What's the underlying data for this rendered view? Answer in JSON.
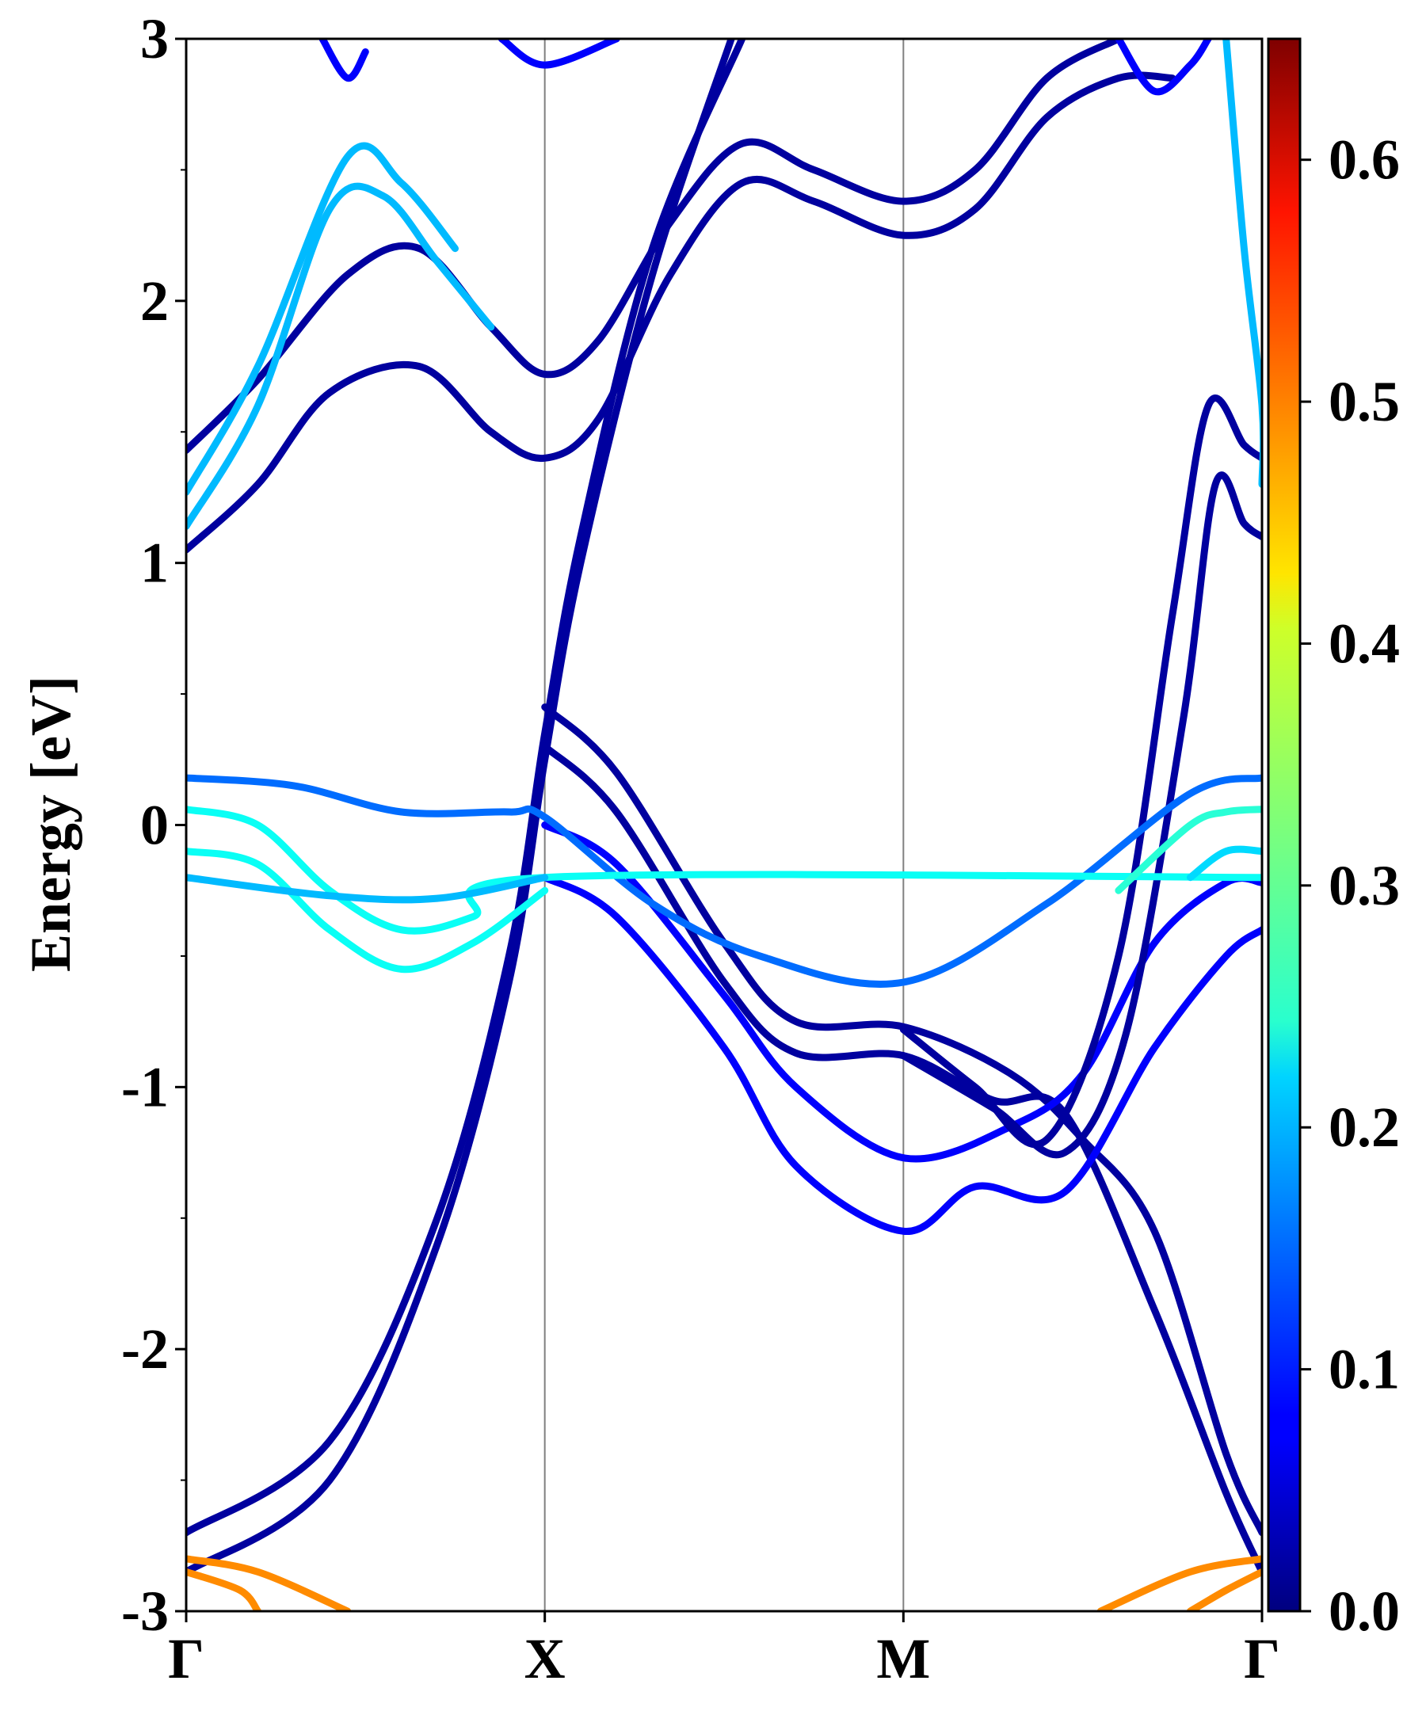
{
  "chart_data": {
    "type": "line",
    "title": "",
    "xlabel": "",
    "ylabel": "Energy [eV]",
    "ylim": [
      -3,
      3
    ],
    "xlim": [
      0,
      3
    ],
    "grid": false,
    "x_ticks": [
      {
        "x": 0,
        "label": "Γ"
      },
      {
        "x": 1,
        "label": "X"
      },
      {
        "x": 2,
        "label": "M"
      },
      {
        "x": 3,
        "label": "Γ"
      }
    ],
    "y_ticks": [
      {
        "y": 3,
        "label": "3"
      },
      {
        "y": 2,
        "label": "2"
      },
      {
        "y": 1,
        "label": "1"
      },
      {
        "y": 0,
        "label": "0"
      },
      {
        "y": -1,
        "label": "-1"
      },
      {
        "y": -2,
        "label": "-2"
      },
      {
        "y": -3,
        "label": "-3"
      }
    ],
    "colorbar": {
      "colormap": "jet",
      "range": [
        0.0,
        0.65
      ],
      "ticks": [
        {
          "value": 0.0,
          "label": "0.0"
        },
        {
          "value": 0.1,
          "label": "0.1"
        },
        {
          "value": 0.2,
          "label": "0.2"
        },
        {
          "value": 0.3,
          "label": "0.3"
        },
        {
          "value": 0.4,
          "label": "0.4"
        },
        {
          "value": 0.5,
          "label": "0.5"
        },
        {
          "value": 0.6,
          "label": "0.6"
        }
      ]
    },
    "series": [
      {
        "weight": 0.02,
        "points": [
          [
            0,
            -2.7
          ],
          [
            0.4,
            -2.35
          ],
          [
            0.7,
            -1.5
          ],
          [
            0.9,
            -0.5
          ],
          [
            1.0,
            0.35
          ],
          [
            1.1,
            1.1
          ],
          [
            1.3,
            2.2
          ],
          [
            1.55,
            3.0
          ]
        ]
      },
      {
        "weight": 0.02,
        "points": [
          [
            0,
            -2.85
          ],
          [
            0.4,
            -2.5
          ],
          [
            0.7,
            -1.6
          ],
          [
            0.9,
            -0.6
          ],
          [
            1.0,
            0.25
          ],
          [
            1.1,
            1.0
          ],
          [
            1.3,
            2.1
          ],
          [
            1.52,
            3.0
          ]
        ]
      },
      {
        "weight": 0.02,
        "points": [
          [
            1.0,
            0.45
          ],
          [
            1.2,
            0.2
          ],
          [
            1.5,
            -0.45
          ],
          [
            1.7,
            -0.75
          ],
          [
            2.0,
            -0.77
          ],
          [
            2.3,
            -0.95
          ],
          [
            2.5,
            -1.2
          ],
          [
            2.7,
            -1.55
          ],
          [
            2.9,
            -2.4
          ],
          [
            3.0,
            -2.7
          ]
        ]
      },
      {
        "weight": 0.02,
        "points": [
          [
            1.0,
            0.3
          ],
          [
            1.2,
            0.05
          ],
          [
            1.5,
            -0.6
          ],
          [
            1.7,
            -0.87
          ],
          [
            2.0,
            -0.88
          ],
          [
            2.25,
            -1.05
          ],
          [
            2.45,
            -1.1
          ],
          [
            2.7,
            -1.85
          ],
          [
            2.9,
            -2.55
          ],
          [
            3.0,
            -2.85
          ]
        ]
      },
      {
        "weight": 0.08,
        "points": [
          [
            1.0,
            0.0
          ],
          [
            1.2,
            -0.15
          ],
          [
            1.5,
            -0.65
          ],
          [
            1.7,
            -1.0
          ],
          [
            2.0,
            -1.27
          ],
          [
            2.3,
            -1.15
          ],
          [
            2.5,
            -0.95
          ],
          [
            2.7,
            -0.45
          ],
          [
            2.9,
            -0.22
          ],
          [
            3.0,
            -0.22
          ]
        ]
      },
      {
        "weight": 0.08,
        "points": [
          [
            1.0,
            -0.2
          ],
          [
            1.2,
            -0.35
          ],
          [
            1.5,
            -0.85
          ],
          [
            1.7,
            -1.3
          ],
          [
            2.0,
            -1.55
          ],
          [
            2.2,
            -1.38
          ],
          [
            2.45,
            -1.4
          ],
          [
            2.7,
            -0.85
          ],
          [
            2.9,
            -0.5
          ],
          [
            3.0,
            -0.4
          ]
        ]
      },
      {
        "weight": 0.02,
        "points": [
          [
            2.0,
            -0.78
          ],
          [
            2.2,
            -1.0
          ],
          [
            2.4,
            -1.2
          ],
          [
            2.6,
            -0.5
          ],
          [
            2.75,
            0.8
          ],
          [
            2.85,
            1.6
          ],
          [
            2.95,
            1.45
          ],
          [
            3.0,
            1.4
          ]
        ]
      },
      {
        "weight": 0.02,
        "points": [
          [
            2.0,
            -0.88
          ],
          [
            2.25,
            -1.08
          ],
          [
            2.45,
            -1.25
          ],
          [
            2.62,
            -0.8
          ],
          [
            2.78,
            0.4
          ],
          [
            2.87,
            1.3
          ],
          [
            2.95,
            1.15
          ],
          [
            3.0,
            1.1
          ]
        ]
      },
      {
        "weight": 0.15,
        "points": [
          [
            0,
            0.18
          ],
          [
            0.3,
            0.15
          ],
          [
            0.6,
            0.05
          ],
          [
            0.9,
            0.05
          ],
          [
            1.0,
            0.03
          ],
          [
            1.3,
            -0.3
          ],
          [
            1.6,
            -0.5
          ],
          [
            2.0,
            -0.6
          ],
          [
            2.4,
            -0.3
          ],
          [
            2.8,
            0.12
          ],
          [
            3.0,
            0.18
          ]
        ]
      },
      {
        "weight": 0.25,
        "points": [
          [
            0,
            0.06
          ],
          [
            0.2,
            0.0
          ],
          [
            0.4,
            -0.25
          ],
          [
            0.6,
            -0.4
          ],
          [
            0.8,
            -0.35
          ],
          [
            1.0,
            -0.2
          ],
          [
            3.0,
            -0.2
          ]
        ]
      },
      {
        "weight": 0.25,
        "points": [
          [
            0,
            -0.1
          ],
          [
            0.2,
            -0.15
          ],
          [
            0.4,
            -0.4
          ],
          [
            0.6,
            -0.55
          ],
          [
            0.8,
            -0.45
          ],
          [
            1.0,
            -0.25
          ]
        ]
      },
      {
        "weight": 0.2,
        "points": [
          [
            0,
            -0.2
          ],
          [
            0.4,
            -0.27
          ],
          [
            0.7,
            -0.28
          ],
          [
            1.0,
            -0.2
          ]
        ]
      },
      {
        "weight": 0.22,
        "points": [
          [
            2.8,
            -0.2
          ],
          [
            2.9,
            -0.1
          ],
          [
            3.0,
            -0.1
          ]
        ]
      },
      {
        "weight": 0.27,
        "points": [
          [
            2.6,
            -0.25
          ],
          [
            2.8,
            0.0
          ],
          [
            2.9,
            0.05
          ],
          [
            3.0,
            0.06
          ]
        ]
      },
      {
        "weight": 0.02,
        "points": [
          [
            0,
            1.05
          ],
          [
            0.2,
            1.3
          ],
          [
            0.4,
            1.65
          ],
          [
            0.65,
            1.75
          ],
          [
            0.85,
            1.5
          ],
          [
            1.0,
            1.4
          ],
          [
            1.15,
            1.55
          ],
          [
            1.35,
            2.1
          ],
          [
            1.55,
            2.45
          ],
          [
            1.75,
            2.38
          ],
          [
            2.0,
            2.25
          ],
          [
            2.2,
            2.35
          ],
          [
            2.4,
            2.7
          ],
          [
            2.6,
            2.85
          ],
          [
            2.75,
            2.85
          ]
        ]
      },
      {
        "weight": 0.02,
        "points": [
          [
            0,
            1.43
          ],
          [
            0.2,
            1.7
          ],
          [
            0.45,
            2.1
          ],
          [
            0.65,
            2.2
          ],
          [
            0.85,
            1.9
          ],
          [
            1.0,
            1.72
          ],
          [
            1.15,
            1.85
          ],
          [
            1.35,
            2.3
          ],
          [
            1.55,
            2.6
          ],
          [
            1.75,
            2.5
          ],
          [
            2.0,
            2.38
          ],
          [
            2.2,
            2.5
          ],
          [
            2.4,
            2.85
          ],
          [
            2.6,
            3.0
          ]
        ]
      },
      {
        "weight": 0.2,
        "points": [
          [
            0,
            1.14
          ],
          [
            0.2,
            1.6
          ],
          [
            0.4,
            2.35
          ],
          [
            0.55,
            2.4
          ],
          [
            0.7,
            2.15
          ],
          [
            0.85,
            1.9
          ]
        ]
      },
      {
        "weight": 0.2,
        "points": [
          [
            0,
            1.27
          ],
          [
            0.2,
            1.75
          ],
          [
            0.45,
            2.55
          ],
          [
            0.6,
            2.45
          ],
          [
            0.75,
            2.2
          ]
        ]
      },
      {
        "weight": 0.2,
        "points": [
          [
            2.9,
            3.0
          ],
          [
            2.95,
            2.2
          ],
          [
            3.0,
            1.6
          ],
          [
            3.0,
            1.3
          ]
        ]
      },
      {
        "weight": 0.08,
        "points": [
          [
            0.38,
            3.0
          ],
          [
            0.45,
            2.85
          ],
          [
            0.5,
            2.95
          ]
        ]
      },
      {
        "weight": 0.08,
        "points": [
          [
            0.88,
            3.0
          ],
          [
            1.0,
            2.9
          ],
          [
            1.2,
            3.0
          ]
        ]
      },
      {
        "weight": 0.08,
        "points": [
          [
            2.6,
            3.0
          ],
          [
            2.7,
            2.8
          ],
          [
            2.8,
            2.9
          ],
          [
            2.85,
            3.0
          ]
        ]
      },
      {
        "weight": 0.48,
        "points": [
          [
            0,
            -2.8
          ],
          [
            0.2,
            -2.85
          ],
          [
            0.45,
            -3.0
          ]
        ]
      },
      {
        "weight": 0.48,
        "points": [
          [
            0,
            -2.85
          ],
          [
            0.15,
            -2.92
          ],
          [
            0.2,
            -3.0
          ]
        ]
      },
      {
        "weight": 0.48,
        "points": [
          [
            2.55,
            -3.0
          ],
          [
            2.8,
            -2.85
          ],
          [
            3.0,
            -2.8
          ]
        ]
      },
      {
        "weight": 0.48,
        "points": [
          [
            2.8,
            -3.0
          ],
          [
            2.9,
            -2.92
          ],
          [
            3.0,
            -2.85
          ]
        ]
      }
    ]
  }
}
